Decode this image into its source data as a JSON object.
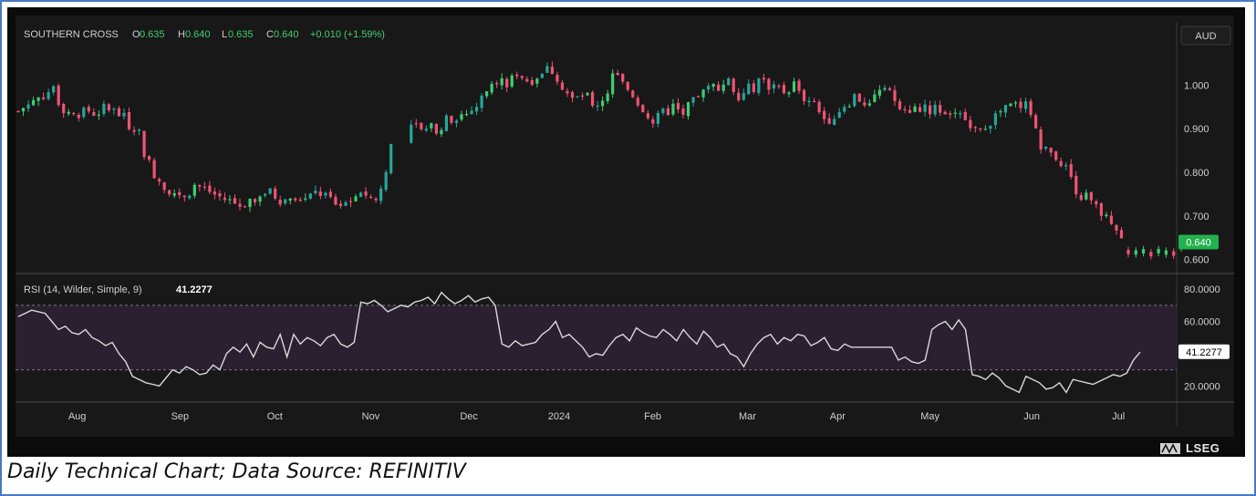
{
  "header": {
    "symbol": "SOUTHERN CROSS",
    "o_label": "O",
    "o_value": "0.635",
    "h_label": "H",
    "h_value": "0.640",
    "l_label": "L",
    "l_value": "0.635",
    "c_label": "C",
    "c_value": "0.640",
    "change": "+0.010 (+1.59%)",
    "currency": "AUD"
  },
  "rsi_header": {
    "label": "RSI (14, Wilder, Simple, 9)",
    "value": "41.2277"
  },
  "caption": "Daily Technical Chart; Data Source: REFINITIV",
  "logo_text": "LSEG",
  "colors": {
    "up": "#26a69a",
    "up_bright": "#3fce74",
    "down": "#ef5375",
    "rsi_line": "#d9d9d9",
    "last_price_bg": "#22b14c",
    "frame": "#4a78c2"
  },
  "chart_data": [
    {
      "type": "candlestick",
      "title": "SOUTHERN CROSS",
      "y_ticks": [
        "1.000",
        "0.900",
        "0.800",
        "0.700",
        "0.600"
      ],
      "ylim": [
        0.57,
        1.08
      ],
      "last_price": "0.640",
      "x_ticks": [
        {
          "label": "Aug",
          "t": 0.051
        },
        {
          "label": "Sep",
          "t": 0.14
        },
        {
          "label": "Oct",
          "t": 0.222
        },
        {
          "label": "Nov",
          "t": 0.305
        },
        {
          "label": "Dec",
          "t": 0.39
        },
        {
          "label": "2024",
          "t": 0.468
        },
        {
          "label": "Feb",
          "t": 0.549
        },
        {
          "label": "Mar",
          "t": 0.631
        },
        {
          "label": "Apr",
          "t": 0.709
        },
        {
          "label": "May",
          "t": 0.789
        },
        {
          "label": "Jun",
          "t": 0.877
        },
        {
          "label": "Jul",
          "t": 0.952
        }
      ],
      "close_path": [
        [
          0.0,
          0.94
        ],
        [
          0.01,
          0.96
        ],
        [
          0.02,
          0.975
        ],
        [
          0.03,
          0.99
        ],
        [
          0.04,
          0.95
        ],
        [
          0.05,
          0.93
        ],
        [
          0.06,
          0.945
        ],
        [
          0.07,
          0.935
        ],
        [
          0.08,
          0.95
        ],
        [
          0.09,
          0.935
        ],
        [
          0.1,
          0.91
        ],
        [
          0.108,
          0.905
        ],
        [
          0.112,
          0.86
        ],
        [
          0.118,
          0.82
        ],
        [
          0.125,
          0.79
        ],
        [
          0.132,
          0.77
        ],
        [
          0.14,
          0.755
        ],
        [
          0.15,
          0.75
        ],
        [
          0.16,
          0.77
        ],
        [
          0.17,
          0.76
        ],
        [
          0.18,
          0.745
        ],
        [
          0.19,
          0.735
        ],
        [
          0.2,
          0.725
        ],
        [
          0.21,
          0.74
        ],
        [
          0.22,
          0.755
        ],
        [
          0.23,
          0.75
        ],
        [
          0.24,
          0.735
        ],
        [
          0.25,
          0.75
        ],
        [
          0.26,
          0.735
        ],
        [
          0.27,
          0.755
        ],
        [
          0.28,
          0.74
        ],
        [
          0.29,
          0.725
        ],
        [
          0.3,
          0.735
        ],
        [
          0.31,
          0.76
        ],
        [
          0.318,
          0.74
        ],
        [
          0.325,
          0.735
        ],
        [
          0.336,
          0.86
        ],
        [
          0.345,
          0.885
        ],
        [
          0.355,
          0.905
        ],
        [
          0.365,
          0.895
        ],
        [
          0.375,
          0.9
        ],
        [
          0.385,
          0.915
        ],
        [
          0.395,
          0.93
        ],
        [
          0.405,
          0.935
        ],
        [
          0.415,
          0.955
        ],
        [
          0.423,
          0.99
        ],
        [
          0.43,
          1.02
        ],
        [
          0.44,
          1.0
        ],
        [
          0.45,
          1.03
        ],
        [
          0.46,
          1.01
        ],
        [
          0.47,
          1.025
        ],
        [
          0.48,
          1.04
        ],
        [
          0.487,
          1.02
        ],
        [
          0.493,
          0.99
        ],
        [
          0.5,
          0.965
        ],
        [
          0.51,
          0.975
        ],
        [
          0.52,
          0.955
        ],
        [
          0.53,
          0.975
        ],
        [
          0.537,
          1.03
        ],
        [
          0.545,
          1.0
        ],
        [
          0.553,
          0.985
        ],
        [
          0.56,
          0.96
        ],
        [
          0.567,
          0.94
        ],
        [
          0.573,
          0.91
        ],
        [
          0.58,
          0.93
        ],
        [
          0.59,
          0.95
        ],
        [
          0.6,
          0.935
        ],
        [
          0.61,
          0.96
        ],
        [
          0.62,
          0.985
        ],
        [
          0.63,
          1.0
        ],
        [
          0.64,
          1.01
        ],
        [
          0.65,
          0.98
        ],
        [
          0.66,
          0.99
        ],
        [
          0.67,
          1.005
        ],
        [
          0.68,
          1.0
        ],
        [
          0.69,
          0.985
        ],
        [
          0.7,
          1.0
        ],
        [
          0.71,
          0.97
        ],
        [
          0.72,
          0.95
        ],
        [
          0.728,
          0.92
        ],
        [
          0.735,
          0.93
        ],
        [
          0.745,
          0.955
        ],
        [
          0.755,
          0.975
        ],
        [
          0.765,
          0.96
        ],
        [
          0.775,
          0.985
        ],
        [
          0.785,
          0.98
        ],
        [
          0.795,
          0.96
        ],
        [
          0.805,
          0.945
        ],
        [
          0.815,
          0.95
        ],
        [
          0.825,
          0.945
        ],
        [
          0.835,
          0.945
        ],
        [
          0.845,
          0.935
        ],
        [
          0.855,
          0.92
        ],
        [
          0.865,
          0.91
        ],
        [
          0.875,
          0.915
        ],
        [
          0.885,
          0.935
        ],
        [
          0.895,
          0.95
        ],
        [
          0.905,
          0.955
        ],
        [
          0.915,
          0.94
        ],
        [
          0.92,
          0.86
        ],
        [
          0.928,
          0.845
        ],
        [
          0.935,
          0.84
        ],
        [
          0.942,
          0.82
        ],
        [
          0.95,
          0.79
        ],
        [
          0.957,
          0.75
        ],
        [
          0.965,
          0.74
        ],
        [
          0.972,
          0.72
        ],
        [
          0.98,
          0.7
        ],
        [
          0.987,
          0.68
        ],
        [
          0.993,
          0.66
        ],
        [
          1.0,
          0.62
        ]
      ],
      "tail_path": [
        [
          0.0,
          0.62
        ],
        [
          0.015,
          0.615
        ],
        [
          0.03,
          0.625
        ],
        [
          0.045,
          0.618
        ],
        [
          0.06,
          0.63
        ],
        [
          0.075,
          0.64
        ]
      ]
    },
    {
      "type": "line",
      "title": "RSI (14, Wilder, Simple, 9)",
      "y_ticks": [
        "80.0000",
        "60.0000",
        "20.0000"
      ],
      "ylim": [
        10,
        88
      ],
      "band": [
        30,
        70
      ],
      "last_value": "41.2277",
      "values": [
        63,
        65,
        67,
        66,
        65,
        60,
        55,
        57,
        53,
        52,
        55,
        50,
        48,
        45,
        47,
        40,
        35,
        26,
        24,
        22,
        21,
        20,
        25,
        30,
        28,
        32,
        30,
        27,
        28,
        33,
        30,
        40,
        44,
        41,
        46,
        38,
        47,
        44,
        43,
        52,
        38,
        52,
        46,
        50,
        48,
        45,
        50,
        52,
        46,
        44,
        47,
        72,
        71,
        73,
        70,
        66,
        68,
        70,
        69,
        72,
        73,
        75,
        71,
        78,
        74,
        71,
        73,
        76,
        72,
        74,
        75,
        70,
        46,
        44,
        48,
        45,
        46,
        47,
        52,
        55,
        60,
        50,
        52,
        48,
        44,
        38,
        40,
        39,
        45,
        50,
        52,
        48,
        56,
        53,
        51,
        50,
        55,
        52,
        48,
        55,
        50,
        46,
        54,
        50,
        44,
        46,
        40,
        38,
        32,
        40,
        46,
        50,
        52,
        46,
        50,
        48,
        52,
        51,
        45,
        47,
        50,
        43,
        42,
        46,
        44,
        44,
        44,
        44,
        44,
        44,
        44,
        36,
        38,
        35,
        34,
        36,
        55,
        58,
        60,
        55,
        61,
        55,
        27,
        26,
        24,
        28,
        25,
        20,
        18,
        16,
        26,
        24,
        22,
        18,
        19,
        22,
        16,
        24,
        23,
        22,
        21,
        23,
        25,
        27,
        26,
        28,
        36,
        41
      ]
    }
  ]
}
